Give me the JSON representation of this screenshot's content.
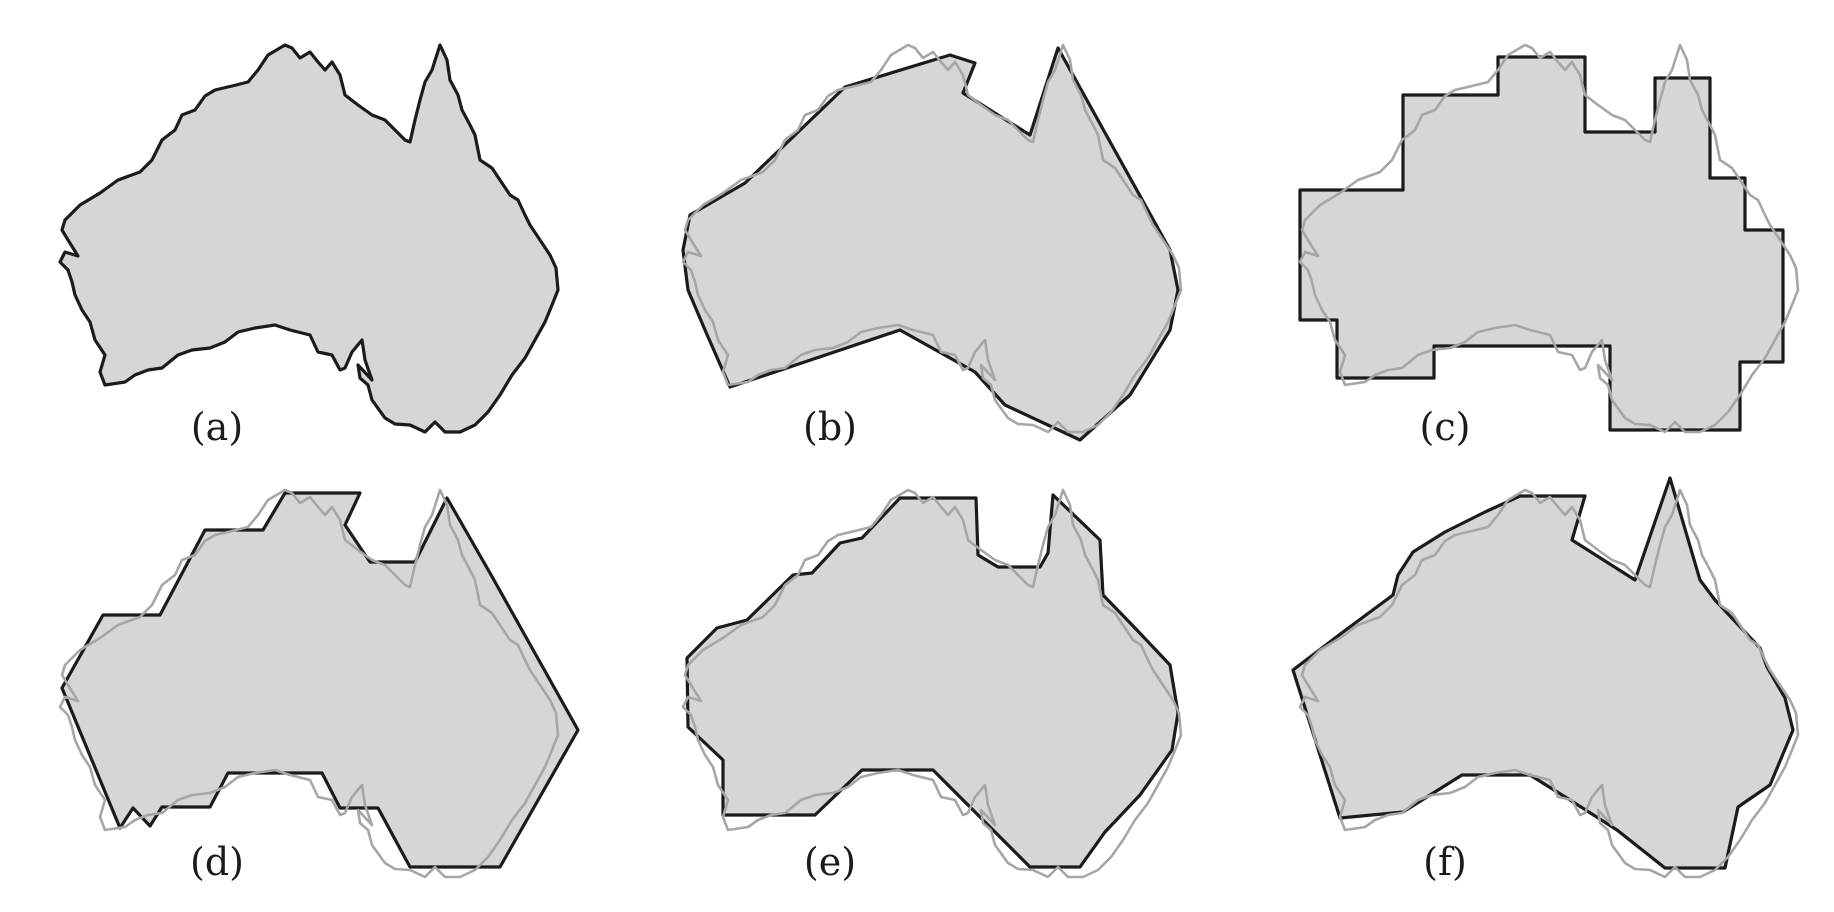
{
  "panels": [
    {
      "id": "a",
      "label": "(a)"
    },
    {
      "id": "b",
      "label": "(b)"
    },
    {
      "id": "c",
      "label": "(c)"
    },
    {
      "id": "d",
      "label": "(d)"
    },
    {
      "id": "e",
      "label": "(e)"
    },
    {
      "id": "f",
      "label": "(f)"
    }
  ],
  "colors": {
    "fill": "#d5d6d8",
    "outline": "#1b1b1b",
    "reference_outline": "#a6a6a6"
  }
}
